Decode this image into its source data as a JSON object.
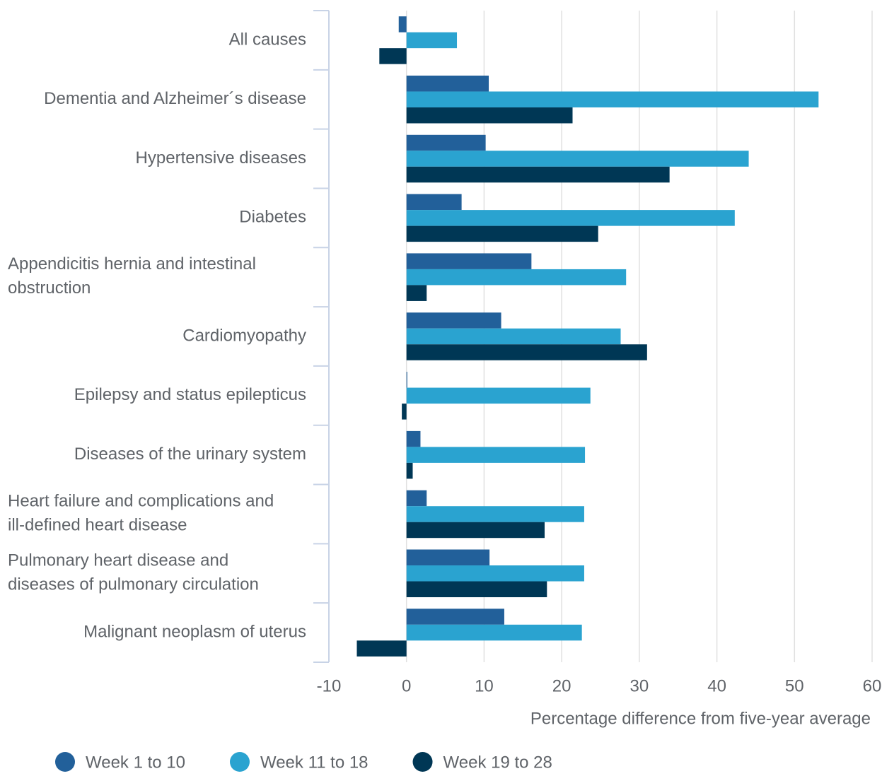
{
  "chart_data": {
    "type": "bar",
    "orientation": "horizontal",
    "categories": [
      "All causes",
      "Dementia and Alzheimer´s disease",
      "Hypertensive diseases",
      "Diabetes",
      "Appendicitis hernia and intestinal obstruction",
      "Cardiomyopathy",
      "Epilepsy and status epilepticus",
      "Diseases of the urinary system",
      "Heart failure and complications and ill-defined heart disease",
      "Pulmonary heart disease and diseases of pulmonary circulation",
      "Malignant neoplasm of uterus"
    ],
    "series": [
      {
        "name": "Week 1 to 10",
        "color": "#22609a",
        "values": [
          -1.0,
          10.6,
          10.2,
          7.1,
          16.1,
          12.2,
          0.1,
          1.8,
          2.6,
          10.7,
          12.6
        ]
      },
      {
        "name": "Week 11 to 18",
        "color": "#2aa3d0",
        "values": [
          6.5,
          53.1,
          44.1,
          42.3,
          28.3,
          27.6,
          23.7,
          23.0,
          22.9,
          22.9,
          22.6
        ]
      },
      {
        "name": "Week 19 to 28",
        "color": "#003755",
        "values": [
          -3.5,
          21.4,
          33.9,
          24.7,
          2.6,
          31.0,
          -0.6,
          0.8,
          17.8,
          18.1,
          -6.4
        ]
      }
    ],
    "xlim": [
      -10,
      60
    ],
    "xticks": [
      -10,
      0,
      10,
      20,
      30,
      40,
      50,
      60
    ],
    "xlabel": "Percentage difference from five-year average",
    "grid": true,
    "legend": "bottom"
  }
}
